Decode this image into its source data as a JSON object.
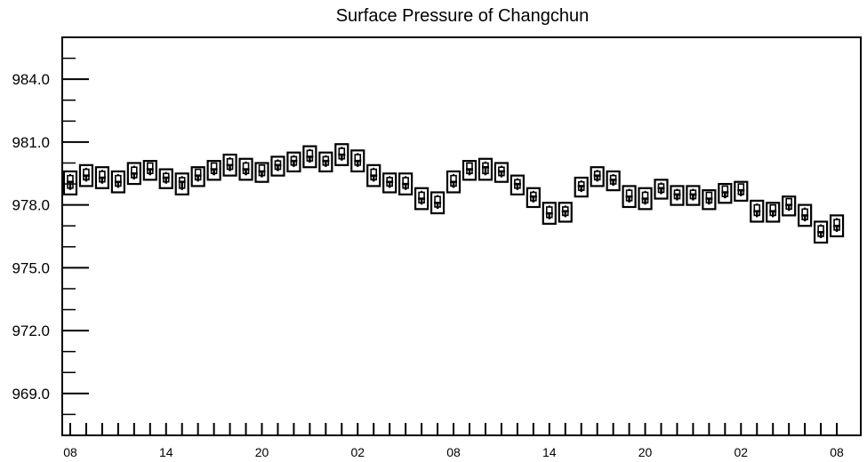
{
  "chart_data": {
    "type": "box",
    "title": "Surface Pressure of Changchun",
    "xlabel": "",
    "ylabel": "",
    "ylim": [
      967.0,
      986.0
    ],
    "ytick_values": [
      969.0,
      972.0,
      975.0,
      978.0,
      981.0,
      984.0
    ],
    "ytick_labels": [
      "969.0",
      "972.0",
      "975.0",
      "978.0",
      "981.0",
      "984.0"
    ],
    "xlim_hours": [
      -0.5,
      49.5
    ],
    "xtick_hours": [
      0,
      6,
      12,
      18,
      24,
      30,
      36,
      42,
      48
    ],
    "xtick_labels": [
      "08",
      "14",
      "20",
      "02",
      "08",
      "14",
      "20",
      "02",
      "08"
    ],
    "grid": false,
    "series": [
      {
        "boxes": [
          {
            "hour": 0,
            "min": 978.5,
            "q1": 978.8,
            "median": 979.1,
            "q3": 979.4,
            "max": 979.6
          },
          {
            "hour": 1,
            "min": 978.9,
            "q1": 979.2,
            "median": 979.4,
            "q3": 979.7,
            "max": 979.9
          },
          {
            "hour": 2,
            "min": 978.8,
            "q1": 979.1,
            "median": 979.3,
            "q3": 979.6,
            "max": 979.8
          },
          {
            "hour": 3,
            "min": 978.6,
            "q1": 978.9,
            "median": 979.1,
            "q3": 979.4,
            "max": 979.6
          },
          {
            "hour": 4,
            "min": 979.0,
            "q1": 979.3,
            "median": 979.5,
            "q3": 979.8,
            "max": 980.0
          },
          {
            "hour": 5,
            "min": 979.2,
            "q1": 979.5,
            "median": 979.7,
            "q3": 980.0,
            "max": 980.1
          },
          {
            "hour": 6,
            "min": 978.8,
            "q1": 979.1,
            "median": 979.3,
            "q3": 979.5,
            "max": 979.7
          },
          {
            "hour": 7,
            "min": 978.5,
            "q1": 978.8,
            "median": 979.1,
            "q3": 979.3,
            "max": 979.5
          },
          {
            "hour": 8,
            "min": 978.9,
            "q1": 979.2,
            "median": 979.4,
            "q3": 979.7,
            "max": 979.8
          },
          {
            "hour": 9,
            "min": 979.2,
            "q1": 979.5,
            "median": 979.7,
            "q3": 980.0,
            "max": 980.1
          },
          {
            "hour": 10,
            "min": 979.4,
            "q1": 979.7,
            "median": 979.9,
            "q3": 980.2,
            "max": 980.4
          },
          {
            "hour": 11,
            "min": 979.2,
            "q1": 979.5,
            "median": 979.7,
            "q3": 980.0,
            "max": 980.2
          },
          {
            "hour": 12,
            "min": 979.1,
            "q1": 979.4,
            "median": 979.6,
            "q3": 979.9,
            "max": 980.0
          },
          {
            "hour": 13,
            "min": 979.4,
            "q1": 979.7,
            "median": 979.9,
            "q3": 980.1,
            "max": 980.3
          },
          {
            "hour": 14,
            "min": 979.6,
            "q1": 979.9,
            "median": 980.1,
            "q3": 980.3,
            "max": 980.5
          },
          {
            "hour": 15,
            "min": 979.8,
            "q1": 980.1,
            "median": 980.3,
            "q3": 980.6,
            "max": 980.8
          },
          {
            "hour": 16,
            "min": 979.6,
            "q1": 979.9,
            "median": 980.1,
            "q3": 980.3,
            "max": 980.5
          },
          {
            "hour": 17,
            "min": 979.9,
            "q1": 980.2,
            "median": 980.4,
            "q3": 980.7,
            "max": 980.9
          },
          {
            "hour": 18,
            "min": 979.6,
            "q1": 979.9,
            "median": 980.1,
            "q3": 980.4,
            "max": 980.6
          },
          {
            "hour": 19,
            "min": 978.9,
            "q1": 979.2,
            "median": 979.4,
            "q3": 979.7,
            "max": 979.9
          },
          {
            "hour": 20,
            "min": 978.6,
            "q1": 978.9,
            "median": 979.1,
            "q3": 979.3,
            "max": 979.5
          },
          {
            "hour": 21,
            "min": 978.5,
            "q1": 978.8,
            "median": 979.0,
            "q3": 979.3,
            "max": 979.5
          },
          {
            "hour": 22,
            "min": 977.8,
            "q1": 978.1,
            "median": 978.3,
            "q3": 978.6,
            "max": 978.8
          },
          {
            "hour": 23,
            "min": 977.6,
            "q1": 977.9,
            "median": 978.1,
            "q3": 978.4,
            "max": 978.6
          },
          {
            "hour": 24,
            "min": 978.6,
            "q1": 978.9,
            "median": 979.1,
            "q3": 979.4,
            "max": 979.6
          },
          {
            "hour": 25,
            "min": 979.2,
            "q1": 979.5,
            "median": 979.7,
            "q3": 980.0,
            "max": 980.1
          },
          {
            "hour": 26,
            "min": 979.2,
            "q1": 979.5,
            "median": 979.8,
            "q3": 980.0,
            "max": 980.2
          },
          {
            "hour": 27,
            "min": 979.1,
            "q1": 979.4,
            "median": 979.6,
            "q3": 979.8,
            "max": 980.0
          },
          {
            "hour": 28,
            "min": 978.5,
            "q1": 978.8,
            "median": 979.0,
            "q3": 979.2,
            "max": 979.4
          },
          {
            "hour": 29,
            "min": 977.9,
            "q1": 978.2,
            "median": 978.4,
            "q3": 978.6,
            "max": 978.8
          },
          {
            "hour": 30,
            "min": 977.1,
            "q1": 977.4,
            "median": 977.6,
            "q3": 977.9,
            "max": 978.1
          },
          {
            "hour": 31,
            "min": 977.2,
            "q1": 977.5,
            "median": 977.7,
            "q3": 977.9,
            "max": 978.1
          },
          {
            "hour": 32,
            "min": 978.4,
            "q1": 978.7,
            "median": 978.9,
            "q3": 979.1,
            "max": 979.3
          },
          {
            "hour": 33,
            "min": 978.9,
            "q1": 979.2,
            "median": 979.4,
            "q3": 979.6,
            "max": 979.8
          },
          {
            "hour": 34,
            "min": 978.7,
            "q1": 979.0,
            "median": 979.2,
            "q3": 979.4,
            "max": 979.6
          },
          {
            "hour": 35,
            "min": 977.9,
            "q1": 978.2,
            "median": 978.4,
            "q3": 978.7,
            "max": 978.9
          },
          {
            "hour": 36,
            "min": 977.8,
            "q1": 978.1,
            "median": 978.3,
            "q3": 978.6,
            "max": 978.8
          },
          {
            "hour": 37,
            "min": 978.3,
            "q1": 978.6,
            "median": 978.8,
            "q3": 979.0,
            "max": 979.2
          },
          {
            "hour": 38,
            "min": 978.0,
            "q1": 978.3,
            "median": 978.5,
            "q3": 978.7,
            "max": 978.9
          },
          {
            "hour": 39,
            "min": 978.0,
            "q1": 978.3,
            "median": 978.5,
            "q3": 978.7,
            "max": 978.9
          },
          {
            "hour": 40,
            "min": 977.8,
            "q1": 978.1,
            "median": 978.3,
            "q3": 978.6,
            "max": 978.7
          },
          {
            "hour": 41,
            "min": 978.1,
            "q1": 978.4,
            "median": 978.6,
            "q3": 978.9,
            "max": 979.0
          },
          {
            "hour": 42,
            "min": 978.2,
            "q1": 978.5,
            "median": 978.7,
            "q3": 979.0,
            "max": 979.1
          },
          {
            "hour": 43,
            "min": 977.2,
            "q1": 977.5,
            "median": 977.7,
            "q3": 978.0,
            "max": 978.2
          },
          {
            "hour": 44,
            "min": 977.2,
            "q1": 977.5,
            "median": 977.7,
            "q3": 978.0,
            "max": 978.1
          },
          {
            "hour": 45,
            "min": 977.5,
            "q1": 977.8,
            "median": 978.0,
            "q3": 978.3,
            "max": 978.4
          },
          {
            "hour": 46,
            "min": 977.0,
            "q1": 977.3,
            "median": 977.5,
            "q3": 977.8,
            "max": 978.0
          },
          {
            "hour": 47,
            "min": 976.2,
            "q1": 976.5,
            "median": 976.7,
            "q3": 977.0,
            "max": 977.2
          },
          {
            "hour": 48,
            "min": 976.5,
            "q1": 976.8,
            "median": 977.0,
            "q3": 977.3,
            "max": 977.5
          }
        ]
      }
    ]
  }
}
